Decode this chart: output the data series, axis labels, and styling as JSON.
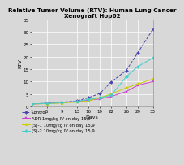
{
  "title": "Relative Tumor Volume (RTV): Human Lung Cancer\nXenograft Hop62",
  "xlabel": "Days",
  "ylabel": "RTV",
  "xlim": [
    1,
    33
  ],
  "ylim": [
    0,
    35
  ],
  "xticks": [
    1,
    5,
    9,
    13,
    16,
    19,
    22,
    26,
    29,
    33
  ],
  "yticks": [
    0,
    5,
    10,
    15,
    20,
    25,
    30,
    35
  ],
  "series": [
    {
      "label": "Control",
      "color": "#4444aa",
      "marker": "D",
      "markersize": 2.0,
      "linestyle": "--",
      "linewidth": 0.7,
      "x": [
        1,
        5,
        9,
        13,
        16,
        19,
        22,
        26,
        29,
        33
      ],
      "y": [
        1.0,
        1.3,
        1.7,
        2.2,
        3.5,
        5.2,
        9.8,
        14.5,
        21.5,
        31.0
      ]
    },
    {
      "label": "ADR 1mg/kg IV on day 15,9",
      "color": "#cc44cc",
      "marker": "s",
      "markersize": 2.0,
      "linestyle": "-",
      "linewidth": 0.7,
      "x": [
        1,
        5,
        9,
        13,
        16,
        19,
        22,
        26,
        29,
        33
      ],
      "y": [
        1.0,
        1.2,
        1.5,
        2.0,
        2.5,
        3.0,
        4.0,
        6.0,
        8.5,
        10.0
      ]
    },
    {
      "label": "(S)-1 10mg/kg IV on day 15,9",
      "color": "#cccc00",
      "marker": "*",
      "markersize": 3.0,
      "linestyle": "-",
      "linewidth": 0.7,
      "x": [
        1,
        5,
        9,
        13,
        16,
        19,
        22,
        26,
        29,
        33
      ],
      "y": [
        1.0,
        1.1,
        1.4,
        1.8,
        2.2,
        3.5,
        5.0,
        7.5,
        9.0,
        11.0
      ]
    },
    {
      "label": "(S)-2 10mg/kg IV on day 15,9",
      "color": "#44cccc",
      "marker": "D",
      "markersize": 2.0,
      "linestyle": "-",
      "linewidth": 0.7,
      "x": [
        1,
        5,
        9,
        13,
        16,
        19,
        22,
        26,
        29,
        33
      ],
      "y": [
        1.0,
        1.2,
        1.5,
        2.1,
        2.8,
        3.5,
        4.5,
        12.0,
        16.0,
        19.5
      ]
    }
  ],
  "title_fontsize": 5.2,
  "label_fontsize": 4.5,
  "tick_fontsize": 4.0,
  "legend_fontsize": 3.8,
  "background_color": "#d8d8d8"
}
